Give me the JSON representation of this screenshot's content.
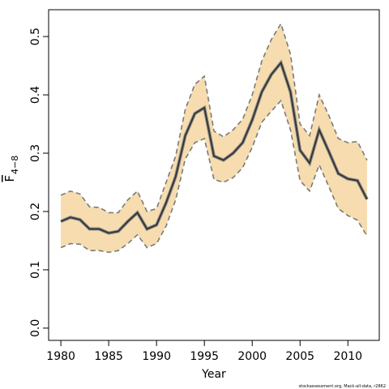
{
  "chart_data": {
    "type": "line",
    "xlabel": "Year",
    "ylabel": "F",
    "ylabel_sub": "4−8",
    "footnote": "stockassessment.org, Mack-all-data, r2862",
    "x": [
      1980,
      1981,
      1982,
      1983,
      1984,
      1985,
      1986,
      1987,
      1988,
      1989,
      1990,
      1991,
      1992,
      1993,
      1994,
      1995,
      1996,
      1997,
      1998,
      1999,
      2000,
      2001,
      2002,
      2003,
      2004,
      2005,
      2006,
      2007,
      2008,
      2009,
      2010,
      2011,
      2012
    ],
    "series": [
      {
        "name": "estimate",
        "color": "#333333",
        "values": [
          0.183,
          0.19,
          0.186,
          0.17,
          0.17,
          0.163,
          0.166,
          0.183,
          0.198,
          0.17,
          0.177,
          0.215,
          0.26,
          0.33,
          0.368,
          0.378,
          0.295,
          0.288,
          0.3,
          0.318,
          0.357,
          0.405,
          0.435,
          0.455,
          0.405,
          0.305,
          0.283,
          0.34,
          0.303,
          0.265,
          0.256,
          0.253,
          0.221
        ]
      },
      {
        "name": "upper",
        "color": "#7a7a7a",
        "values": [
          0.228,
          0.235,
          0.23,
          0.208,
          0.207,
          0.198,
          0.198,
          0.22,
          0.235,
          0.2,
          0.205,
          0.25,
          0.295,
          0.375,
          0.418,
          0.432,
          0.338,
          0.328,
          0.34,
          0.358,
          0.4,
          0.458,
          0.495,
          0.522,
          0.47,
          0.35,
          0.33,
          0.4,
          0.365,
          0.325,
          0.318,
          0.32,
          0.288
        ]
      },
      {
        "name": "lower",
        "color": "#7a7a7a",
        "values": [
          0.138,
          0.145,
          0.144,
          0.133,
          0.133,
          0.13,
          0.133,
          0.145,
          0.16,
          0.138,
          0.145,
          0.175,
          0.22,
          0.29,
          0.318,
          0.325,
          0.255,
          0.25,
          0.258,
          0.275,
          0.31,
          0.353,
          0.372,
          0.39,
          0.34,
          0.253,
          0.235,
          0.28,
          0.243,
          0.205,
          0.193,
          0.185,
          0.158
        ]
      }
    ],
    "band_color": "#f6dcae",
    "xlim": [
      1978.72,
      2013.28
    ],
    "ylim": [
      -0.021,
      0.546
    ],
    "xticks": [
      1980,
      1985,
      1990,
      1995,
      2000,
      2005,
      2010
    ],
    "yticks": [
      {
        "value": 0,
        "label": "0.0"
      },
      0.1,
      0.2,
      0.3,
      0.4,
      0.5
    ]
  }
}
